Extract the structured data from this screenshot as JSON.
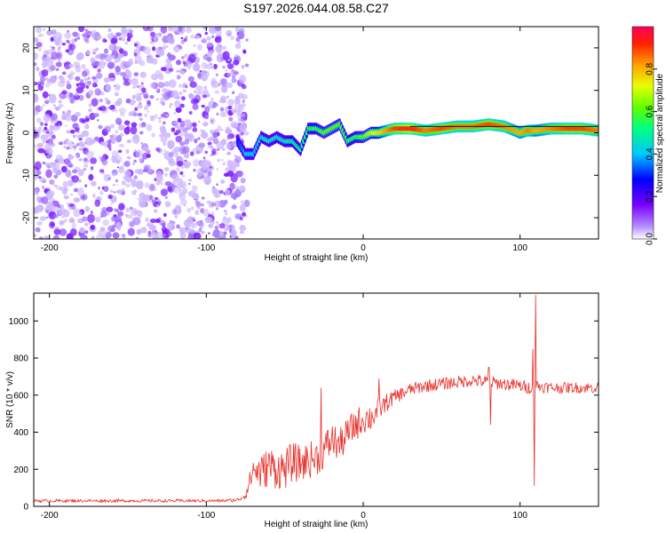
{
  "title": "S197.2026.044.08.58.C27",
  "chart_data": [
    {
      "type": "heatmap",
      "xlabel": "Height of straight line (km)",
      "ylabel": "Frequency (Hz)",
      "xlim": [
        -210,
        150
      ],
      "ylim": [
        -25,
        25
      ],
      "xticks": [
        -200,
        -100,
        0,
        100
      ],
      "xtick_labels": [
        "-200",
        "-100",
        "0",
        "100"
      ],
      "yticks": [
        -20,
        -10,
        0,
        10,
        20
      ],
      "ytick_labels": [
        "-20",
        "-10",
        "0",
        "10",
        "20"
      ],
      "noise_region_x": [
        -210,
        -80
      ],
      "ridge": {
        "x": [
          -80,
          -75,
          -70,
          -65,
          -60,
          -55,
          -50,
          -45,
          -40,
          -35,
          -30,
          -25,
          -20,
          -15,
          -10,
          -5,
          0,
          5,
          10,
          20,
          30,
          40,
          50,
          60,
          70,
          80,
          90,
          100,
          105,
          110,
          120,
          130,
          140,
          150
        ],
        "y": [
          -2,
          -5,
          -5,
          -1,
          -2,
          -1,
          -2,
          -2,
          -4,
          1,
          1,
          0,
          1,
          2,
          -2,
          -1,
          -1,
          0,
          0,
          1,
          1,
          0.5,
          1,
          1.5,
          1.5,
          2,
          1.5,
          0,
          0.5,
          0.5,
          1,
          1,
          1,
          0.5
        ],
        "amplitude": [
          0.3,
          0.4,
          0.4,
          0.45,
          0.45,
          0.45,
          0.45,
          0.5,
          0.5,
          0.55,
          0.55,
          0.6,
          0.6,
          0.6,
          0.55,
          0.55,
          0.6,
          0.7,
          0.75,
          0.9,
          0.95,
          0.85,
          0.9,
          0.85,
          0.85,
          0.9,
          0.85,
          0.8,
          0.85,
          0.8,
          0.85,
          0.9,
          0.9,
          0.85
        ]
      }
    },
    {
      "type": "colorbar",
      "label": "Normalized spectral amplitude",
      "ticks": [
        0.0,
        0.2,
        0.4,
        0.6,
        0.8
      ],
      "tick_labels": [
        "0.0",
        "0.2",
        "0.4",
        "0.6",
        "0.8"
      ],
      "range": [
        0,
        1
      ]
    },
    {
      "type": "line",
      "xlabel": "Height of straight line (km)",
      "ylabel": "SNR (10 * v/v)",
      "xlim": [
        -210,
        150
      ],
      "ylim": [
        0,
        1150
      ],
      "xticks": [
        -200,
        -100,
        0,
        100
      ],
      "xtick_labels": [
        "-200",
        "-100",
        "0",
        "100"
      ],
      "yticks": [
        0,
        200,
        400,
        600,
        800,
        1000
      ],
      "ytick_labels": [
        "0",
        "200",
        "400",
        "600",
        "800",
        "1000"
      ],
      "color": "#e8302a",
      "series": [
        {
          "name": "SNR",
          "x": [
            -210,
            -190,
            -170,
            -150,
            -130,
            -110,
            -90,
            -80,
            -75,
            -70,
            -65,
            -60,
            -55,
            -50,
            -45,
            -40,
            -35,
            -30,
            -25,
            -20,
            -15,
            -10,
            -5,
            0,
            5,
            10,
            15,
            20,
            30,
            40,
            50,
            60,
            70,
            80,
            90,
            100,
            105,
            110,
            120,
            130,
            140,
            150
          ],
          "y": [
            30,
            30,
            30,
            30,
            30,
            30,
            30,
            35,
            60,
            200,
            180,
            220,
            200,
            200,
            240,
            230,
            250,
            260,
            300,
            360,
            330,
            390,
            440,
            470,
            480,
            520,
            560,
            590,
            630,
            650,
            660,
            670,
            680,
            670,
            660,
            650,
            640,
            650,
            640,
            640,
            640,
            640
          ],
          "noise": [
            8,
            8,
            8,
            8,
            8,
            8,
            8,
            10,
            20,
            80,
            100,
            110,
            110,
            110,
            110,
            100,
            100,
            100,
            100,
            100,
            90,
            90,
            90,
            80,
            80,
            60,
            50,
            40,
            35,
            35,
            35,
            35,
            35,
            35,
            35,
            35,
            35,
            35,
            30,
            30,
            30,
            30
          ],
          "spikes": [
            {
              "x": -27,
              "y": 640
            },
            {
              "x": 10,
              "y": 690
            },
            {
              "x": 80,
              "y": 750
            },
            {
              "x": 108,
              "y": 850
            },
            {
              "x": 110,
              "y": 1140
            },
            {
              "x": 109,
              "y": 110
            },
            {
              "x": 81,
              "y": 440
            }
          ]
        }
      ]
    }
  ]
}
